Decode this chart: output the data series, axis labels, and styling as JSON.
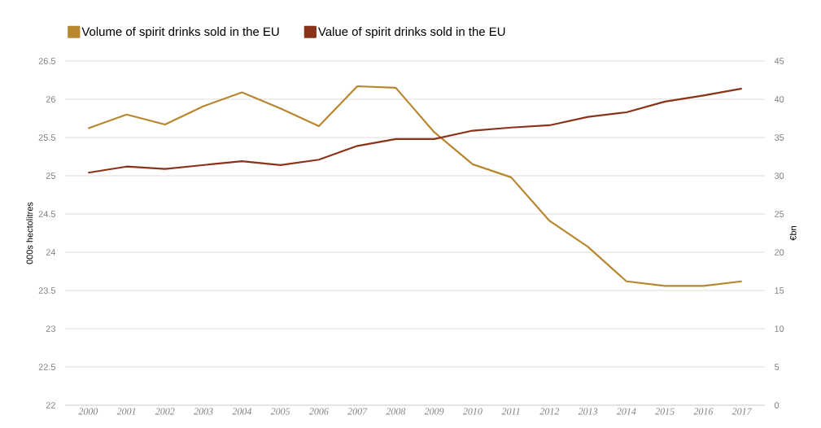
{
  "chart_data": {
    "type": "line",
    "categories": [
      "2000",
      "2001",
      "2002",
      "2003",
      "2004",
      "2005",
      "2006",
      "2007",
      "2008",
      "2009",
      "2010",
      "2011",
      "2012",
      "2013",
      "2014",
      "2015",
      "2016",
      "2017"
    ],
    "series": [
      {
        "name": "Volume of spirit drinks sold in the EU",
        "color": "#b8862e",
        "axis": "y",
        "values": [
          25.62,
          25.8,
          25.67,
          25.91,
          26.09,
          25.88,
          25.65,
          26.17,
          26.15,
          25.57,
          25.15,
          24.98,
          24.41,
          24.07,
          23.62,
          23.56,
          23.56,
          23.62
        ]
      },
      {
        "name": "Value of spirit drinks sold in the EU",
        "color": "#8b3319",
        "axis": "y2",
        "values": [
          30.4,
          31.2,
          30.9,
          31.4,
          31.9,
          31.4,
          32.1,
          33.9,
          34.8,
          34.8,
          35.9,
          36.3,
          36.6,
          37.7,
          38.3,
          39.7,
          40.5,
          41.4
        ]
      }
    ],
    "ylabel": "000s hectolitres",
    "y2label": "€bn",
    "ylim": [
      22,
      26.5
    ],
    "yticks": [
      22,
      22.5,
      23,
      23.5,
      24,
      24.5,
      25,
      25.5,
      26,
      26.5
    ],
    "y2lim": [
      0,
      45
    ],
    "y2ticks": [
      0,
      5,
      10,
      15,
      20,
      25,
      30,
      35,
      40,
      45
    ],
    "grid": "y",
    "legend": "top left",
    "marker": "none",
    "line_style": "solid"
  }
}
